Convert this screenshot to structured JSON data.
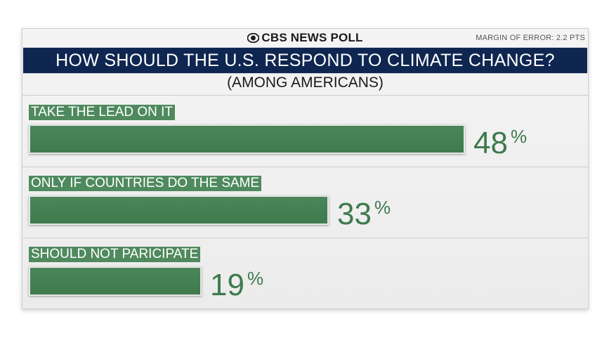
{
  "header": {
    "brand": "CBS NEWS POLL",
    "margin_of_error": "MARGIN OF ERROR: 2.2 PTS",
    "title": "HOW SHOULD THE U.S. RESPOND TO CLIMATE CHANGE?",
    "subtitle": "(AMONG AMERICANS)"
  },
  "colors": {
    "banner": "#0f2650",
    "bar": "#3e7a4e",
    "label_bg": "#4f8a5e",
    "percent_text": "#3e7a4e"
  },
  "chart_data": {
    "type": "bar",
    "orientation": "horizontal",
    "title": "HOW SHOULD THE U.S. RESPOND TO CLIMATE CHANGE?",
    "subtitle": "(AMONG AMERICANS)",
    "unit": "%",
    "categories": [
      "TAKE THE LEAD ON IT",
      "ONLY IF COUNTRIES DO THE SAME",
      "SHOULD NOT PARICIPATE"
    ],
    "values": [
      48,
      33,
      19
    ],
    "xlim": [
      0,
      100
    ],
    "grid": false,
    "legend": "none"
  }
}
